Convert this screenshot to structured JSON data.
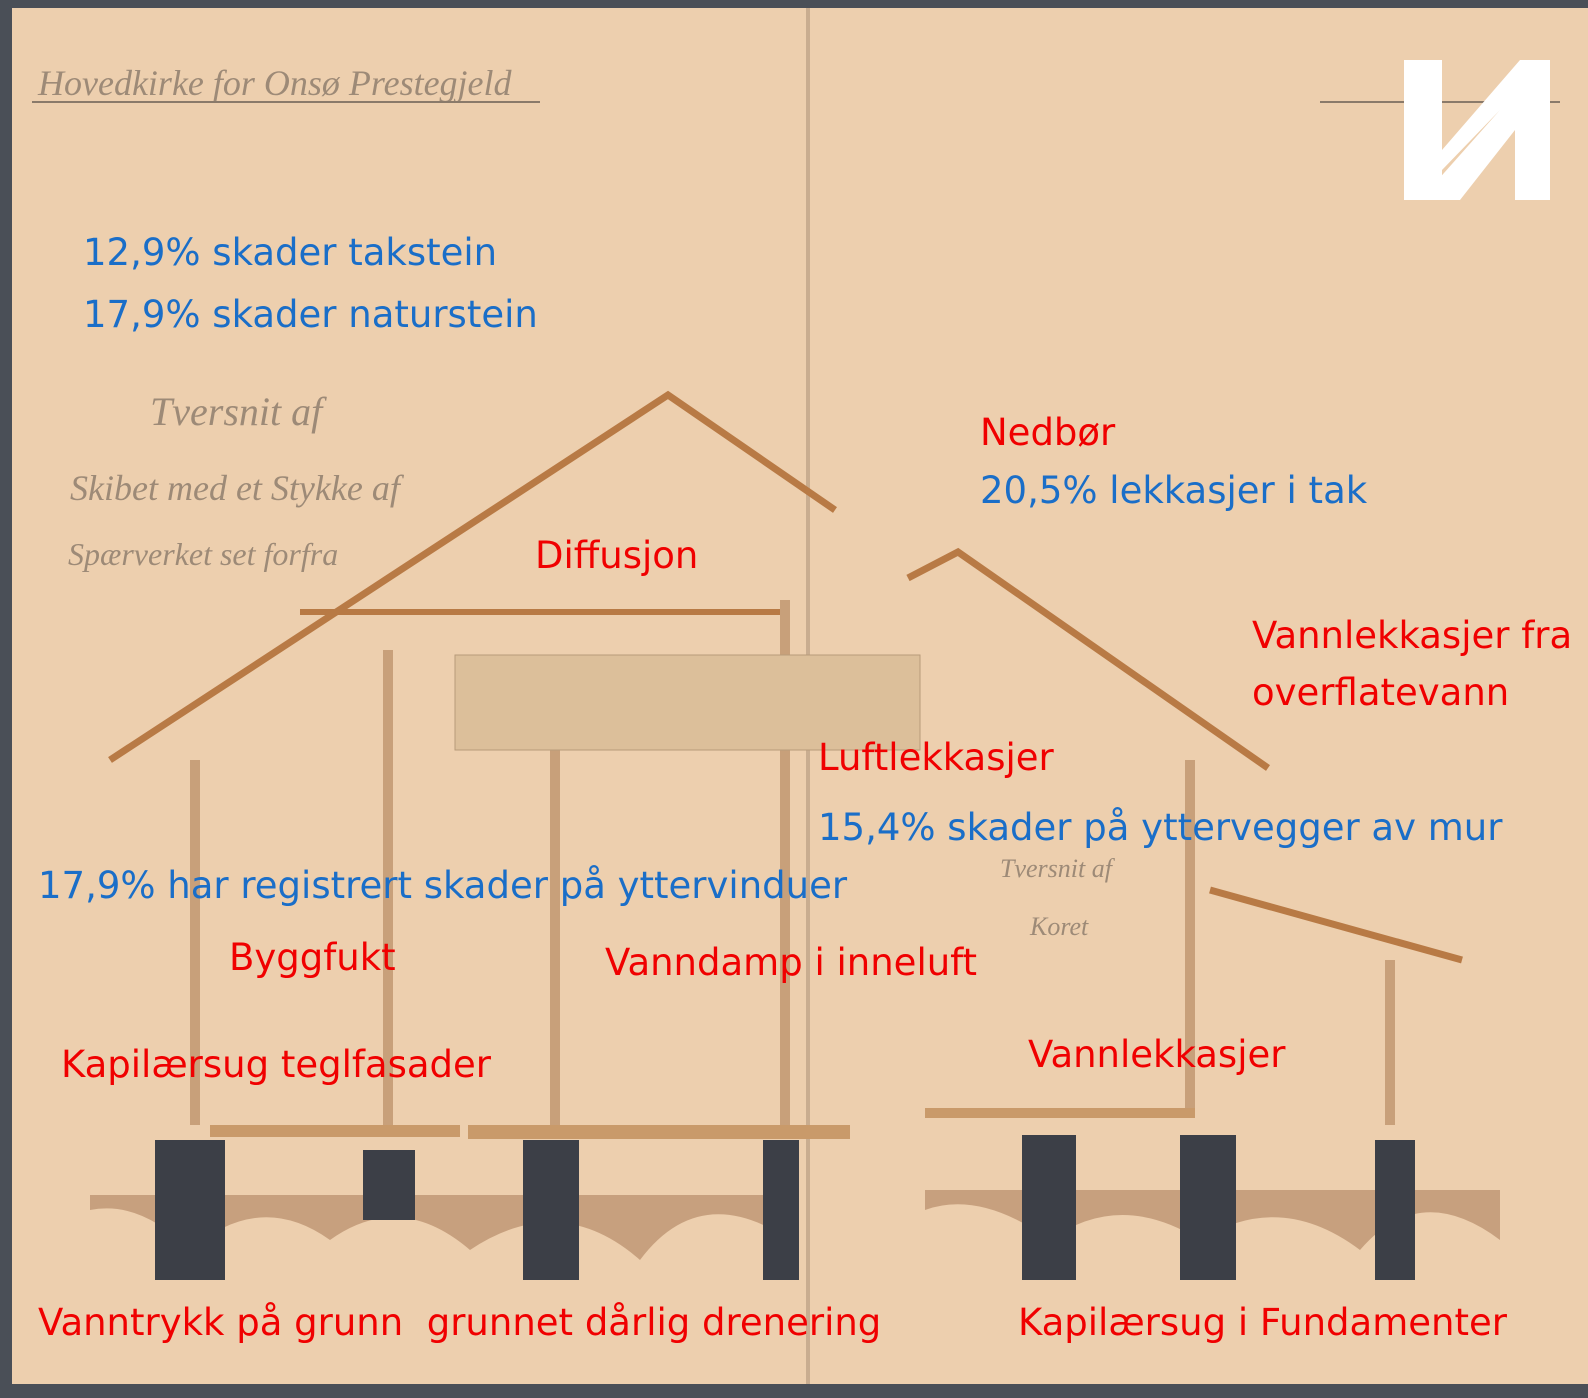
{
  "inscriptions": [
    "Hovedkirke for Onsø Prestegjeld",
    "Tversnit af",
    "Skibet med et Stykke af",
    "Spærverket set forfra",
    "Tversnit af",
    "Koret"
  ],
  "annotations": [
    {
      "text": "12,9% skader takstein",
      "color": "#1a6ec8"
    },
    {
      "text": "17,9% skader naturstein",
      "color": "#1a6ec8"
    },
    {
      "text": "Nedbør",
      "color": "#f00000"
    },
    {
      "text": "20,5% lekkasjer i tak",
      "color": "#1a6ec8"
    },
    {
      "text": "Diffusjon",
      "color": "#f00000"
    },
    {
      "text": "Vannlekkasjer fra",
      "color": "#f00000"
    },
    {
      "text": "overflatevann",
      "color": "#f00000"
    },
    {
      "text": "Luftlekkasjer",
      "color": "#f00000"
    },
    {
      "text": "15,4% skader på yttervegger av mur",
      "color": "#1a6ec8"
    },
    {
      "text": "17,9% har registrert skader på yttervinduer",
      "color": "#1a6ec8"
    },
    {
      "text": "Byggfukt",
      "color": "#f00000"
    },
    {
      "text": "Vanndamp i inneluft",
      "color": "#f00000"
    },
    {
      "text": "Vannlekkasjer",
      "color": "#f00000"
    },
    {
      "text": "Kapilærsug teglfasader",
      "color": "#f00000"
    },
    {
      "text": "Vanntrykk på grunn  grunnet dårlig drenering",
      "color": "#f00000"
    },
    {
      "text": "Kapilærsug i Fundamenter",
      "color": "#f00000"
    }
  ]
}
